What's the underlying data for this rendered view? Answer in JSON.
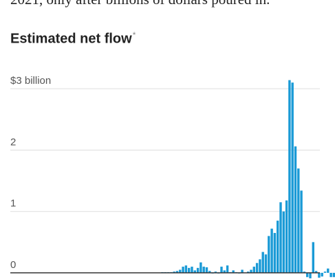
{
  "intro_text": "2021, only after billions of dollars poured in.",
  "chart_heading": "Estimated net flow",
  "chart_heading_mark": "*",
  "chart_data": {
    "type": "bar",
    "title": "Estimated net flow",
    "xlabel": "",
    "ylabel": "",
    "ylim": [
      0,
      3
    ],
    "y_ticks": [
      {
        "value": 3,
        "label": "$3 billion"
      },
      {
        "value": 2,
        "label": "2"
      },
      {
        "value": 1,
        "label": "1"
      },
      {
        "value": 0,
        "label": "0"
      }
    ],
    "grid": true,
    "bar_color": "#1a9ad6",
    "axis_color": "#333333",
    "grid_color": "#dddddd",
    "values": [
      0,
      0,
      0,
      0,
      0,
      0,
      0,
      0,
      0,
      0,
      0,
      0,
      0,
      0,
      0,
      0,
      0,
      0,
      0,
      0,
      0,
      0,
      0,
      0,
      0,
      0,
      0,
      0,
      0,
      0,
      0,
      0,
      0,
      0,
      0,
      0,
      0,
      0,
      0,
      0,
      0,
      0,
      0,
      0,
      0,
      0,
      0,
      0,
      0,
      0,
      0,
      0.01,
      0.01,
      0.01,
      0.01,
      0.02,
      0.03,
      0.05,
      0.1,
      0.12,
      0.08,
      0.1,
      0.04,
      0.08,
      0.17,
      0.1,
      0.09,
      0.03,
      -0.01,
      0.02,
      -0.01,
      0.1,
      0.04,
      0.12,
      0.01,
      0.04,
      0.01,
      -0.01,
      0.05,
      0,
      0.02,
      0.05,
      0.1,
      0.16,
      0.22,
      0.34,
      0.3,
      0.6,
      0.72,
      0.65,
      0.85,
      1.15,
      1,
      1.18,
      3.14,
      3.1,
      2.06,
      1.7,
      1.34,
      0.02,
      -0.07,
      -0.09,
      0.5,
      0.03,
      -0.08,
      -0.06,
      0.02,
      0.07,
      -0.07,
      -0.07
    ]
  }
}
